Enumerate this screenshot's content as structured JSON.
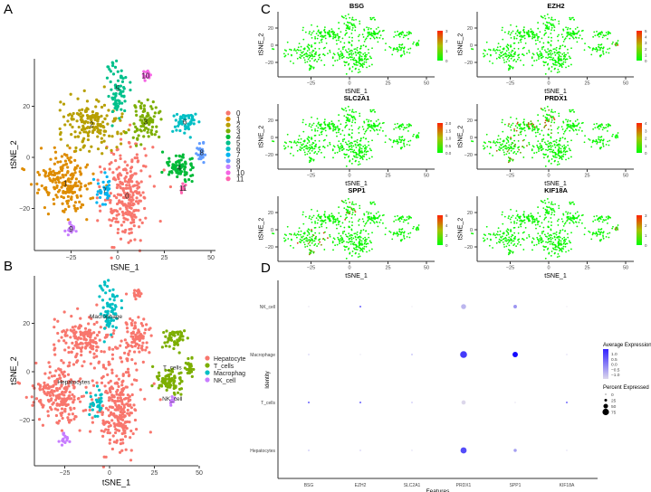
{
  "panels": {
    "a": "A",
    "b": "B",
    "c": "C",
    "d": "D"
  },
  "chart_data": [
    {
      "id": "A",
      "type": "scatter",
      "xlabel": "tSNE_1",
      "ylabel": "tSNE_2",
      "xlim": [
        -45,
        52
      ],
      "ylim": [
        -36,
        38
      ],
      "xticks": [
        -25,
        0,
        25,
        50
      ],
      "yticks": [
        -20,
        0,
        20
      ],
      "legend": "right",
      "clusters": [
        {
          "label": "0",
          "color": "#F8766D",
          "center": [
            5,
            -15
          ],
          "sd": [
            6,
            9
          ],
          "n": 260,
          "cell_type": "Hepatocyte"
        },
        {
          "label": "1",
          "color": "#DE8C00",
          "center": [
            -28,
            -10
          ],
          "sd": [
            7,
            6
          ],
          "n": 200,
          "cell_type": "Hepatocyte"
        },
        {
          "label": "2",
          "color": "#B79F00",
          "center": [
            -14,
            13
          ],
          "sd": [
            8,
            4.5
          ],
          "n": 170,
          "cell_type": "Hepatocyte"
        },
        {
          "label": "3",
          "color": "#7CAE00",
          "center": [
            15,
            14
          ],
          "sd": [
            4,
            4
          ],
          "n": 90,
          "cell_type": "Hepatocyte"
        },
        {
          "label": "4",
          "color": "#00BA38",
          "center": [
            33,
            -4
          ],
          "sd": [
            4.5,
            2.5
          ],
          "n": 80,
          "cell_type": "T_cells"
        },
        {
          "label": "5",
          "color": "#00C08B",
          "center": [
            0,
            27
          ],
          "sd": [
            2.5,
            5
          ],
          "n": 70,
          "cell_type": "Macrophage"
        },
        {
          "label": "6",
          "color": "#00BFC4",
          "center": [
            36,
            14
          ],
          "sd": [
            3,
            2.5
          ],
          "n": 50,
          "cell_type": "T_cells"
        },
        {
          "label": "7",
          "color": "#00B4F0",
          "center": [
            -7,
            -13
          ],
          "sd": [
            2,
            3
          ],
          "n": 30,
          "cell_type": "Macrophage"
        },
        {
          "label": "8",
          "color": "#619CFF",
          "center": [
            45,
            2
          ],
          "sd": [
            1.5,
            1.8
          ],
          "n": 25,
          "cell_type": "T_cells"
        },
        {
          "label": "9",
          "color": "#C77CFF",
          "center": [
            -25,
            -28
          ],
          "sd": [
            1.5,
            1.2
          ],
          "n": 18,
          "cell_type": "NK_cell"
        },
        {
          "label": "10",
          "color": "#F564E3",
          "center": [
            15,
            32
          ],
          "sd": [
            1.5,
            1.2
          ],
          "n": 18,
          "cell_type": "Hepatocyte"
        },
        {
          "label": "11",
          "color": "#FF64B0",
          "center": [
            35,
            -12
          ],
          "sd": [
            0.6,
            1.2
          ],
          "n": 10,
          "cell_type": "NK_cell"
        }
      ]
    },
    {
      "id": "B",
      "type": "scatter",
      "xlabel": "tSNE_1",
      "ylabel": "tSNE_2",
      "xticks": [
        -25,
        0,
        25,
        50
      ],
      "yticks": [
        -20,
        0,
        20
      ],
      "legend": "right",
      "groups": [
        {
          "label": "Hepatocyte",
          "plot_label": "Hepatocytes",
          "color": "#F8766D",
          "label_at": [
            -20,
            -5
          ]
        },
        {
          "label": "T_cells",
          "plot_label": "T_cells",
          "color": "#7CAE00",
          "label_at": [
            35,
            1
          ]
        },
        {
          "label": "Macrophag",
          "plot_label": "Macrophage",
          "color": "#00BFC4",
          "label_at": [
            -2,
            22
          ]
        },
        {
          "label": "NK_cell",
          "plot_label": "NK_cell",
          "color": "#C77CFF",
          "label_at": [
            35,
            -12
          ]
        }
      ]
    },
    {
      "id": "C",
      "type": "scatter",
      "xlabel": "tSNE_1",
      "ylabel": "tSNE_2",
      "xticks": [
        -25,
        0,
        25,
        50
      ],
      "yticks": [
        -20,
        0,
        20
      ],
      "low_color": "#00FF00",
      "high_color": "#FF2000",
      "genes": [
        {
          "title": "BSG",
          "scale": [
            "0",
            "1",
            "2",
            "3"
          ],
          "hot_clusters": []
        },
        {
          "title": "EZH2",
          "scale": [
            "0",
            "1",
            "2",
            "3",
            "4",
            "5"
          ],
          "hot_clusters": [
            "8"
          ]
        },
        {
          "title": "SLC2A1",
          "scale": [
            "0.0",
            "0.5",
            "1.0",
            "1.5",
            "2.0"
          ],
          "hot_clusters": []
        },
        {
          "title": "PRDX1",
          "scale": [
            "0",
            "1",
            "2",
            "3",
            "4"
          ],
          "hot_clusters": [
            "1",
            "2",
            "5",
            "9"
          ]
        },
        {
          "title": "SPP1",
          "scale": [
            "0",
            "2",
            "4",
            "6"
          ],
          "hot_clusters": [
            "1",
            "5",
            "9"
          ]
        },
        {
          "title": "KIF18A",
          "scale": [
            "0",
            "1",
            "2",
            "3"
          ],
          "hot_clusters": [
            "8"
          ]
        }
      ]
    },
    {
      "id": "D",
      "type": "dot",
      "xlabel": "Features",
      "ylabel": "Identity",
      "features": [
        "BSG",
        "EZH2",
        "SLC2A1",
        "PRDX1",
        "SPP1",
        "KIF18A"
      ],
      "identities": [
        "NK_cell",
        "Macrophage",
        "T_cells",
        "Hepatocytes"
      ],
      "percent_expressed": [
        [
          3,
          8,
          1,
          55,
          35,
          1
        ],
        [
          3,
          2,
          4,
          80,
          60,
          3
        ],
        [
          8,
          10,
          4,
          45,
          3,
          8
        ],
        [
          4,
          3,
          2,
          70,
          30,
          2
        ]
      ],
      "average_expression": [
        [
          -1.0,
          1.2,
          -1.0,
          -0.6,
          -0.2,
          -1.0
        ],
        [
          -0.5,
          -1.0,
          0.0,
          0.9,
          1.5,
          -0.8
        ],
        [
          1.2,
          1.0,
          -0.3,
          -1.0,
          -1.0,
          1.0
        ],
        [
          -0.2,
          -0.5,
          -0.8,
          0.7,
          -0.3,
          -0.8
        ]
      ],
      "legend_color": {
        "title": "Average Expression",
        "ticks": [
          "1.0",
          "0.5",
          "0.0",
          "−0.5",
          "−1.0"
        ]
      },
      "legend_size": {
        "title": "Percent Expressed",
        "ticks": [
          "0",
          "25",
          "50",
          "75"
        ]
      }
    }
  ]
}
